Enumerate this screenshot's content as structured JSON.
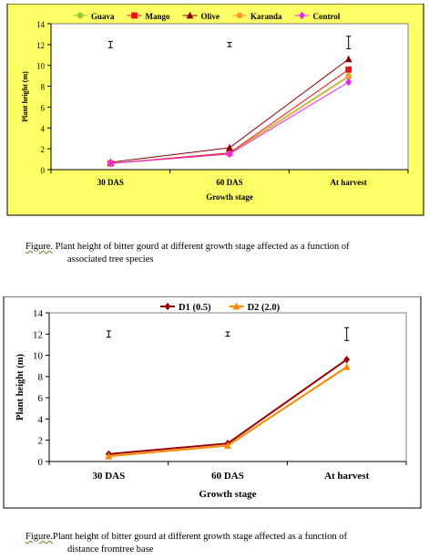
{
  "chart_data": [
    {
      "type": "line",
      "xlabel": "Growth stage",
      "ylabel": "Plant height (m)",
      "categories": [
        "30 DAS",
        "60 DAS",
        "At harvest"
      ],
      "ylim": [
        0,
        14
      ],
      "yticks": [
        0,
        2,
        4,
        6,
        8,
        10,
        12,
        14
      ],
      "legend_position": "top",
      "background": "#ffff66",
      "series": [
        {
          "name": "Guava",
          "values": [
            0.6,
            1.6,
            9.0
          ],
          "color": "#99cc33",
          "marker": "circle"
        },
        {
          "name": "Mango",
          "values": [
            0.6,
            1.6,
            9.6
          ],
          "color": "#ee1111",
          "marker": "square"
        },
        {
          "name": "Olive",
          "values": [
            0.7,
            2.1,
            10.6
          ],
          "color": "#880000",
          "marker": "triangle"
        },
        {
          "name": "Karanda",
          "values": [
            0.6,
            1.5,
            8.9
          ],
          "color": "#ff9933",
          "marker": "circle"
        },
        {
          "name": "Control",
          "values": [
            0.6,
            1.5,
            8.4
          ],
          "color": "#ee22ee",
          "marker": "diamond"
        }
      ],
      "error_bars": [
        {
          "center": 12.0,
          "half": 0.3
        },
        {
          "center": 12.0,
          "half": 0.2
        },
        {
          "center": 12.2,
          "half": 0.6
        }
      ]
    },
    {
      "type": "line",
      "xlabel": "Growth stage",
      "ylabel": "Plant height (m)",
      "categories": [
        "30 DAS",
        "60 DAS",
        "At harvest"
      ],
      "ylim": [
        0,
        14
      ],
      "yticks": [
        0,
        2,
        4,
        6,
        8,
        10,
        12,
        14
      ],
      "legend_position": "top",
      "background": "#ffffff",
      "series": [
        {
          "name": "D1 (0.5)",
          "values": [
            0.7,
            1.7,
            9.6
          ],
          "color": "#990000",
          "marker": "diamond"
        },
        {
          "name": "D2 (2.0)",
          "values": [
            0.5,
            1.5,
            8.9
          ],
          "color": "#ff8800",
          "marker": "triangle"
        }
      ],
      "error_bars": [
        {
          "center": 12.0,
          "half": 0.3
        },
        {
          "center": 12.0,
          "half": 0.2
        },
        {
          "center": 12.0,
          "half": 0.6
        }
      ]
    }
  ],
  "captions": [
    {
      "label": "Figure.",
      "line1": " Plant height of bitter gourd at different growth stage affected as a function of",
      "line2": "associated tree species"
    },
    {
      "label": "Figure.",
      "line1": "Plant height of bitter gourd at different growth stage affected as a function of",
      "line2": "distance fromtree base"
    }
  ]
}
